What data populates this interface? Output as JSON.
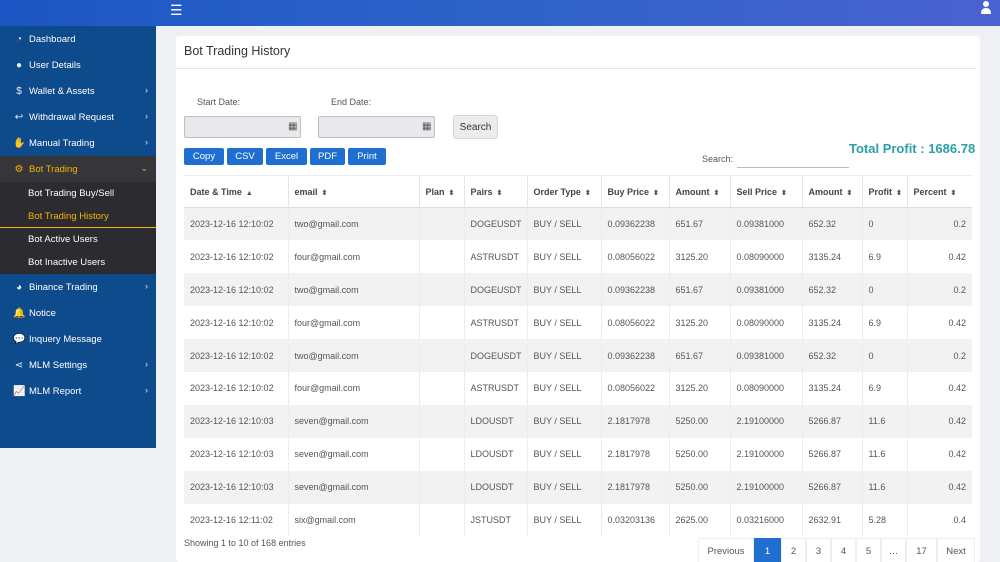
{
  "icons": {
    "menu": "hamburger-icon",
    "user": "user-icon"
  },
  "sidebar": {
    "items": [
      {
        "label": "Dashboard",
        "icon": "dashboard-icon",
        "glyph": "◔",
        "chevron": false
      },
      {
        "label": "User Details",
        "icon": "user-icon",
        "glyph": "●",
        "chevron": false
      },
      {
        "label": "Wallet & Assets",
        "icon": "dollar-icon",
        "glyph": "$",
        "chevron": true
      },
      {
        "label": "Withdrawal Request",
        "icon": "reply-icon",
        "glyph": "↩",
        "chevron": true
      },
      {
        "label": "Manual Trading",
        "icon": "hand-icon",
        "glyph": "✋",
        "chevron": true
      },
      {
        "label": "Bot Trading",
        "icon": "cogs-icon",
        "glyph": "⚙",
        "chevron": true
      },
      {
        "label": "Binance Trading",
        "icon": "pie-chart-icon",
        "glyph": "◕",
        "chevron": true
      },
      {
        "label": "Notice",
        "icon": "bell-icon",
        "glyph": "🔔",
        "chevron": false
      },
      {
        "label": "Inquery Message",
        "icon": "comments-icon",
        "glyph": "💬",
        "chevron": false
      },
      {
        "label": "MLM Settings",
        "icon": "share-icon",
        "glyph": "⋖",
        "chevron": true
      },
      {
        "label": "MLM Report",
        "icon": "line-chart-icon",
        "glyph": "📈",
        "chevron": true
      }
    ],
    "sub": [
      "Bot Trading Buy/Sell",
      "Bot Trading History",
      "Bot Active Users",
      "Bot Inactive Users"
    ]
  },
  "page": {
    "title": "Bot Trading History"
  },
  "filters": {
    "start_label": "Start Date:",
    "end_label": "End Date:",
    "search_button": "Search"
  },
  "export": [
    "Copy",
    "CSV",
    "Excel",
    "PDF",
    "Print"
  ],
  "search_label": "Search:",
  "total_profit": "Total Profit : 1686.78",
  "table": {
    "headers": [
      "Date & Time",
      "email",
      "Plan",
      "Pairs",
      "Order Type",
      "Buy Price",
      "Amount",
      "Sell Price",
      "Amount",
      "Profit",
      "Percent"
    ],
    "sort_glyphs": [
      "▲",
      "⬍",
      "⬍",
      "⬍",
      "⬍",
      "⬍",
      "⬍",
      "⬍",
      "⬍",
      "⬍",
      "⬍"
    ],
    "rows": [
      [
        "2023-12-16 12:10:02",
        "two@gmail.com",
        "",
        "DOGEUSDT",
        "BUY / SELL",
        "0.09362238",
        "651.67",
        "0.09381000",
        "652.32",
        "0",
        "0.2"
      ],
      [
        "2023-12-16 12:10:02",
        "four@gmail.com",
        "",
        "ASTRUSDT",
        "BUY / SELL",
        "0.08056022",
        "3125.20",
        "0.08090000",
        "3135.24",
        "6.9",
        "0.42"
      ],
      [
        "2023-12-16 12:10:02",
        "two@gmail.com",
        "",
        "DOGEUSDT",
        "BUY / SELL",
        "0.09362238",
        "651.67",
        "0.09381000",
        "652.32",
        "0",
        "0.2"
      ],
      [
        "2023-12-16 12:10:02",
        "four@gmail.com",
        "",
        "ASTRUSDT",
        "BUY / SELL",
        "0.08056022",
        "3125.20",
        "0.08090000",
        "3135.24",
        "6.9",
        "0.42"
      ],
      [
        "2023-12-16 12:10:02",
        "two@gmail.com",
        "",
        "DOGEUSDT",
        "BUY / SELL",
        "0.09362238",
        "651.67",
        "0.09381000",
        "652.32",
        "0",
        "0.2"
      ],
      [
        "2023-12-16 12:10:02",
        "four@gmail.com",
        "",
        "ASTRUSDT",
        "BUY / SELL",
        "0.08056022",
        "3125.20",
        "0.08090000",
        "3135.24",
        "6.9",
        "0.42"
      ],
      [
        "2023-12-16 12:10:03",
        "seven@gmail.com",
        "",
        "LDOUSDT",
        "BUY / SELL",
        "2.1817978",
        "5250.00",
        "2.19100000",
        "5266.87",
        "11.6",
        "0.42"
      ],
      [
        "2023-12-16 12:10:03",
        "seven@gmail.com",
        "",
        "LDOUSDT",
        "BUY / SELL",
        "2.1817978",
        "5250.00",
        "2.19100000",
        "5266.87",
        "11.6",
        "0.42"
      ],
      [
        "2023-12-16 12:10:03",
        "seven@gmail.com",
        "",
        "LDOUSDT",
        "BUY / SELL",
        "2.1817978",
        "5250.00",
        "2.19100000",
        "5266.87",
        "11.6",
        "0.42"
      ],
      [
        "2023-12-16 12:11:02",
        "six@gmail.com",
        "",
        "JSTUSDT",
        "BUY / SELL",
        "0.03203136",
        "2625.00",
        "0.03216000",
        "2632.91",
        "5.28",
        "0.4"
      ]
    ]
  },
  "info": "Showing 1 to 10 of 168 entries",
  "pagination": [
    "Previous",
    "1",
    "2",
    "3",
    "4",
    "5",
    "…",
    "17",
    "Next"
  ]
}
